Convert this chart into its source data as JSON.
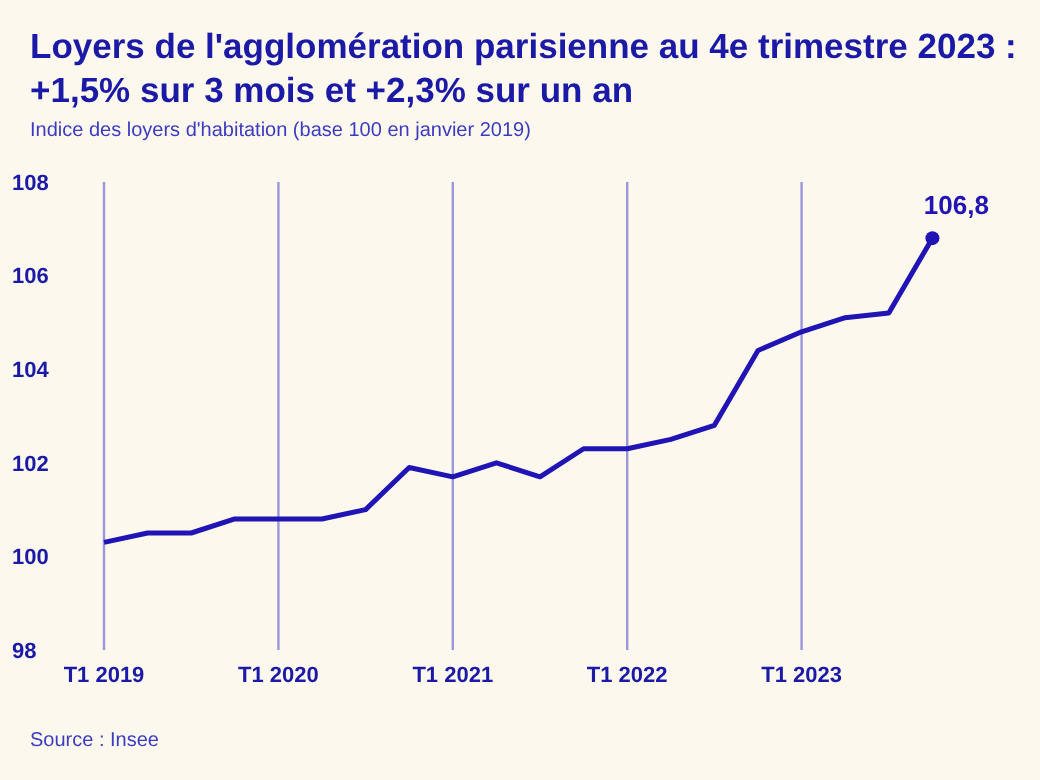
{
  "chart_data": {
    "type": "line",
    "title": "Loyers de l'agglomération parisienne au 4e trimestre 2023 :\n+1,5% sur 3 mois et +2,3% sur un an",
    "subtitle": "Indice des loyers d'habitation (base 100 en janvier 2019)",
    "categories": [
      "T1 2019",
      null,
      null,
      null,
      "T1 2020",
      null,
      null,
      null,
      "T1 2021",
      null,
      null,
      null,
      "T1 2022",
      null,
      null,
      null,
      "T1 2023",
      null,
      null,
      null
    ],
    "series": [
      {
        "color": "#2014b4",
        "values": [
          100.3,
          100.5,
          100.5,
          100.8,
          100.8,
          100.8,
          101.0,
          101.9,
          101.7,
          102.0,
          101.7,
          102.3,
          102.3,
          102.5,
          102.8,
          104.4,
          104.8,
          105.1,
          105.2,
          106.8
        ],
        "value_labels": [
          null,
          null,
          null,
          null,
          null,
          null,
          null,
          null,
          null,
          null,
          null,
          null,
          null,
          null,
          null,
          null,
          null,
          null,
          null,
          "106,8"
        ]
      }
    ],
    "ylim": [
      98,
      108
    ],
    "yticks": [
      98,
      100,
      102,
      104,
      106,
      108
    ],
    "grid": "x",
    "legend": false,
    "annotations": [
      "Source : Insee"
    ]
  }
}
